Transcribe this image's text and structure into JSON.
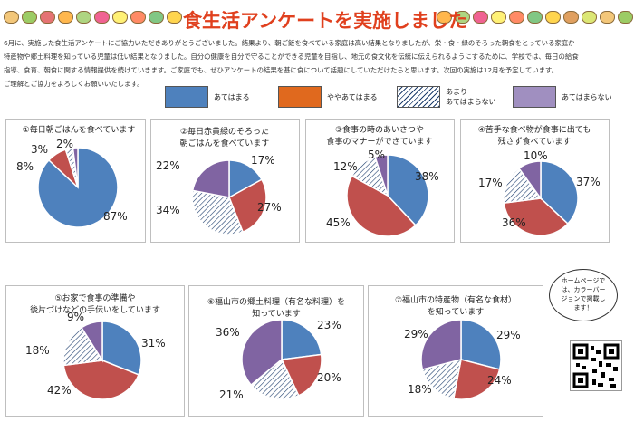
{
  "header": {
    "title": "食生活アンケートを実施しました",
    "intro_lines": [
      "6月に、実施した食生活アンケートにご協力いただきありがとうございました。結果より、朝ご飯を食べている家庭は高い結果となりましたが、栄・食・緑のそろった朝食をとっている家庭か",
      "特産物や郷土料理を知っている児童は低い結果となりました。自分の健康を自分で守ることができる児童を目指し、地元の食文化を伝統に伝えられるようにするために、学校では、毎日の給食",
      "指導、食育、朝食に関する情報提供を続けていきます。ご家庭でも、ぜひアンケートの結果を基に食について話題にしていただけたらと思います。次回の実施は12月を予定しています。",
      "ご理解とご協力をよろしくお願いいたします。"
    ]
  },
  "legend": [
    {
      "label": "あてはまる",
      "color": "#4e81bd",
      "pattern": "solid"
    },
    {
      "label": "ややあてはまる",
      "color": "#e0691e",
      "pattern": "solid"
    },
    {
      "label": "あまり\nあてはまらない",
      "color": "#1f3f6e",
      "pattern": "hatch"
    },
    {
      "label": "あてはまらない",
      "color": "#a08fc0",
      "pattern": "solid"
    }
  ],
  "series_colors": [
    "#4e81bd",
    "#c0504d",
    "hatch",
    "#8064a2"
  ],
  "charts": [
    {
      "title": "①毎日朝ごはんを食べています",
      "values": [
        87,
        8,
        3,
        2
      ],
      "labels": [
        "87%",
        "8%",
        "3%",
        "2%"
      ]
    },
    {
      "title": "②毎日赤黄緑のそろった\n朝ごはんを食べています",
      "values": [
        17,
        27,
        34,
        22
      ],
      "labels": [
        "17%",
        "27%",
        "34%",
        "22%"
      ]
    },
    {
      "title": "③食事の時のあいさつや\n食事のマナーができています",
      "values": [
        38,
        45,
        12,
        5
      ],
      "labels": [
        "38%",
        "45%",
        "12%",
        "5%"
      ]
    },
    {
      "title": "④苦手な食べ物が食事に出ても\n残さず食べています",
      "values": [
        37,
        36,
        17,
        10
      ],
      "labels": [
        "37%",
        "36%",
        "17%",
        "10%"
      ]
    },
    {
      "title": "⑤お家で食事の準備や\n後片づけなどの手伝いをしています",
      "values": [
        31,
        42,
        18,
        9
      ],
      "labels": [
        "31%",
        "42%",
        "18%",
        "9%"
      ]
    },
    {
      "title": "⑥福山市の郷土料理（有名な料理）を\n知っています",
      "values": [
        23,
        20,
        21,
        36
      ],
      "labels": [
        "23%",
        "20%",
        "21%",
        "36%"
      ]
    },
    {
      "title": "⑦福山市の特産物（有名な食材）\nを知っています",
      "values": [
        29,
        24,
        18,
        29
      ],
      "labels": [
        "29%",
        "24%",
        "18%",
        "29%"
      ]
    }
  ],
  "chart_data": [
    {
      "type": "pie",
      "title": "①毎日朝ごはんを食べています",
      "categories": [
        "あてはまる",
        "ややあてはまる",
        "あまりあてはまらない",
        "あてはまらない"
      ],
      "values": [
        87,
        8,
        3,
        2
      ]
    },
    {
      "type": "pie",
      "title": "②毎日赤黄緑のそろった朝ごはんを食べています",
      "categories": [
        "あてはまる",
        "ややあてはまる",
        "あまりあてはまらない",
        "あてはまらない"
      ],
      "values": [
        17,
        27,
        34,
        22
      ]
    },
    {
      "type": "pie",
      "title": "③食事の時のあいさつや食事のマナーができています",
      "categories": [
        "あてはまる",
        "ややあてはまる",
        "あまりあてはまらない",
        "あてはまらない"
      ],
      "values": [
        38,
        45,
        12,
        5
      ]
    },
    {
      "type": "pie",
      "title": "④苦手な食べ物が食事に出ても残さず食べています",
      "categories": [
        "あてはまる",
        "ややあてはまる",
        "あまりあてはまらない",
        "あてはまらない"
      ],
      "values": [
        37,
        36,
        17,
        10
      ]
    },
    {
      "type": "pie",
      "title": "⑤お家で食事の準備や後片づけなどの手伝いをしています",
      "categories": [
        "あてはまる",
        "ややあてはまる",
        "あまりあてはまらない",
        "あてはまらない"
      ],
      "values": [
        31,
        42,
        18,
        9
      ]
    },
    {
      "type": "pie",
      "title": "⑥福山市の郷土料理（有名な料理）を知っています",
      "categories": [
        "あてはまる",
        "ややあてはまる",
        "あまりあてはまらない",
        "あてはまらない"
      ],
      "values": [
        23,
        20,
        21,
        36
      ]
    },
    {
      "type": "pie",
      "title": "⑦福山市の特産物（有名な食材）を知っています",
      "categories": [
        "あてはまる",
        "ややあてはまる",
        "あまりあてはまらない",
        "あてはまらない"
      ],
      "values": [
        29,
        24,
        18,
        29
      ]
    }
  ],
  "callout": {
    "text": "ホームページで\nは、カラーバー\nジョンで掲載し\nます！"
  },
  "qr_icon": "qr-code-icon"
}
